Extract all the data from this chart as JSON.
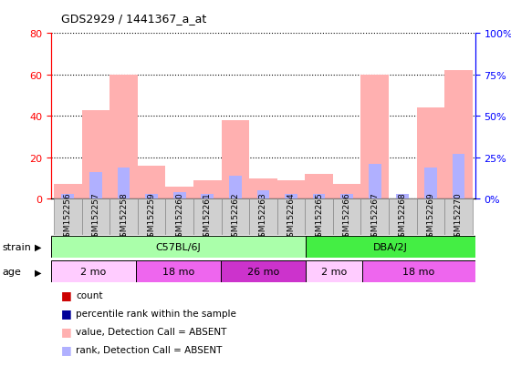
{
  "title": "GDS2929 / 1441367_a_at",
  "samples": [
    "GSM152256",
    "GSM152257",
    "GSM152258",
    "GSM152259",
    "GSM152260",
    "GSM152261",
    "GSM152262",
    "GSM152263",
    "GSM152264",
    "GSM152265",
    "GSM152266",
    "GSM152267",
    "GSM152268",
    "GSM152269",
    "GSM152270"
  ],
  "count_values": [
    0,
    0,
    0,
    0,
    0,
    0,
    0,
    0,
    0,
    0,
    0,
    0,
    0,
    0,
    0
  ],
  "rank_values": [
    0,
    0,
    0,
    0,
    0,
    0,
    0,
    0,
    0,
    0,
    0,
    0,
    0,
    0,
    0
  ],
  "absent_count": [
    7,
    43,
    60,
    16,
    6,
    9,
    38,
    10,
    9,
    12,
    7,
    60,
    0,
    44,
    62
  ],
  "absent_rank": [
    3,
    16,
    19,
    3,
    4,
    3,
    14,
    5,
    3,
    3,
    3,
    21,
    3,
    19,
    27
  ],
  "ylim_left": [
    0,
    80
  ],
  "ylim_right": [
    0,
    100
  ],
  "yticks_left": [
    0,
    20,
    40,
    60,
    80
  ],
  "yticks_right": [
    0,
    25,
    50,
    75,
    100
  ],
  "color_count": "#cc0000",
  "color_rank": "#000099",
  "color_absent_count": "#ffb0b0",
  "color_absent_rank": "#b0b0ff",
  "strain_groups": [
    {
      "label": "C57BL/6J",
      "start": 0,
      "end": 9,
      "color": "#aaffaa"
    },
    {
      "label": "DBA/2J",
      "start": 9,
      "end": 15,
      "color": "#44ee44"
    }
  ],
  "age_groups": [
    {
      "label": "2 mo",
      "start": 0,
      "end": 3,
      "color": "#ffccff"
    },
    {
      "label": "18 mo",
      "start": 3,
      "end": 6,
      "color": "#ee66ee"
    },
    {
      "label": "26 mo",
      "start": 6,
      "end": 9,
      "color": "#cc33cc"
    },
    {
      "label": "2 mo",
      "start": 9,
      "end": 11,
      "color": "#ffccff"
    },
    {
      "label": "18 mo",
      "start": 11,
      "end": 15,
      "color": "#ee66ee"
    }
  ],
  "legend_items": [
    {
      "label": "count",
      "color": "#cc0000"
    },
    {
      "label": "percentile rank within the sample",
      "color": "#000099"
    },
    {
      "label": "value, Detection Call = ABSENT",
      "color": "#ffb0b0"
    },
    {
      "label": "rank, Detection Call = ABSENT",
      "color": "#b0b0ff"
    }
  ],
  "bar_width": 0.5,
  "background_color": "#ffffff"
}
